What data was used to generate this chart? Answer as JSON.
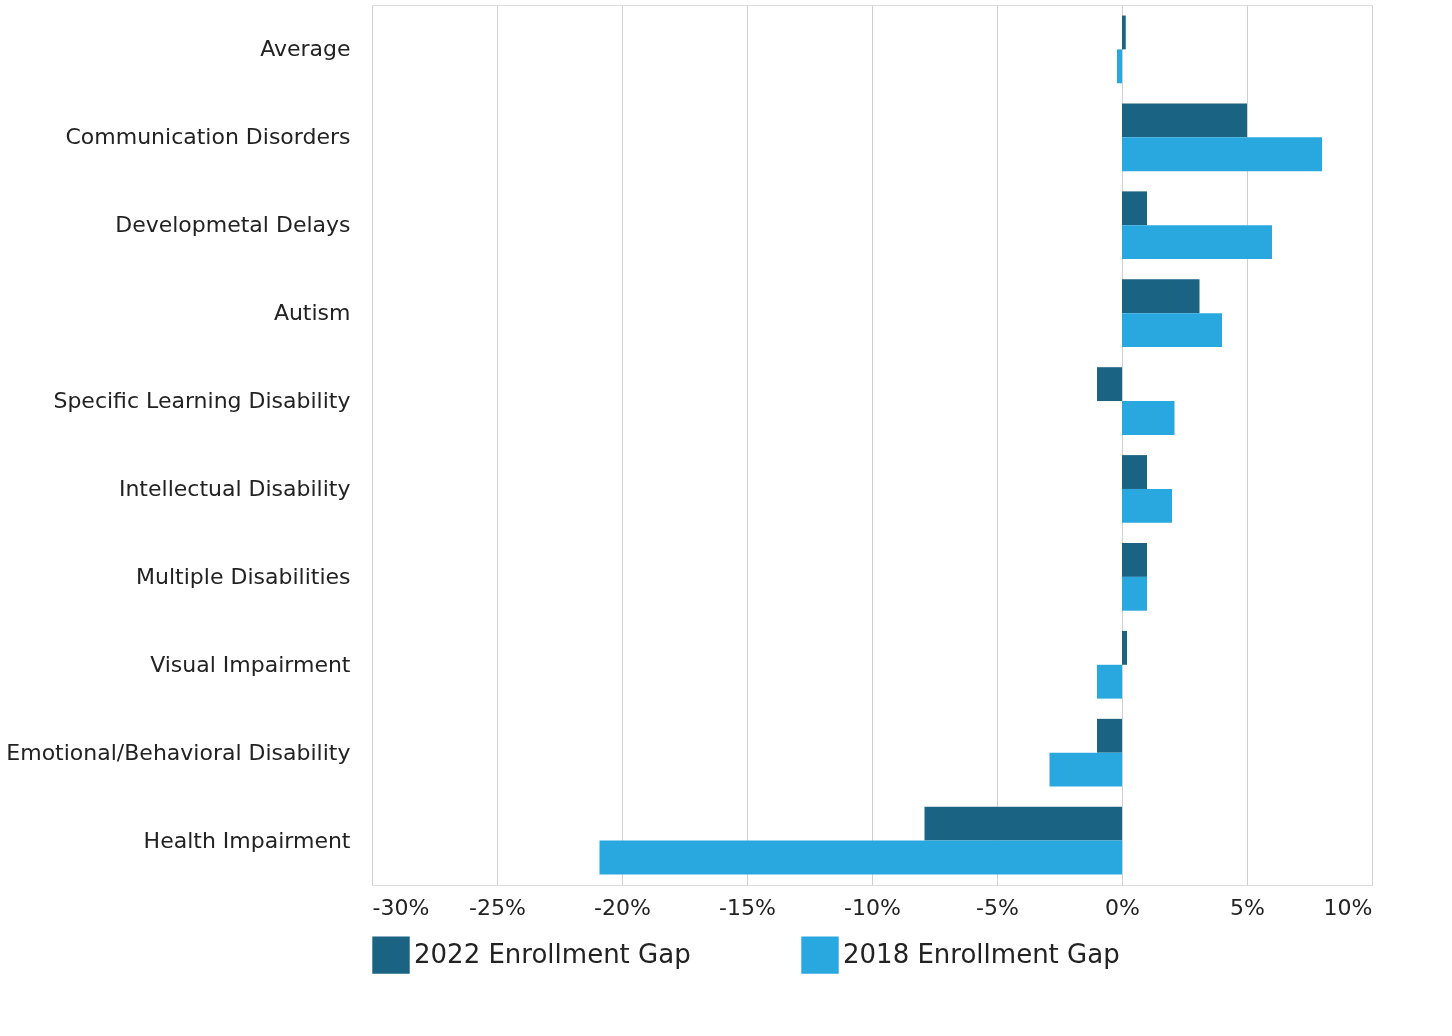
{
  "chart_data": {
    "type": "bar",
    "orientation": "horizontal",
    "categories": [
      "Average",
      "Communication Disorders",
      "Developmetal Delays",
      "Autism",
      "Specific Learning Disability",
      "Intellectual Disability",
      "Multiple Disabilities",
      "Visual Impairment",
      "Emotional/Behavioral Disability",
      "Health Impairment"
    ],
    "series": [
      {
        "name": "2022 Enrollment Gap",
        "color": "#1a6382",
        "values": [
          0.15,
          5.0,
          1.0,
          3.1,
          -1.0,
          1.0,
          1.0,
          0.2,
          -1.0,
          -7.9
        ]
      },
      {
        "name": "2018 Enrollment Gap",
        "color": "#29a8e0",
        "values": [
          -0.2,
          8.0,
          6.0,
          4.0,
          2.1,
          2.0,
          1.0,
          -1.0,
          -2.9,
          -20.9
        ]
      }
    ],
    "xlim": [
      -30,
      10
    ],
    "xticks": [
      {
        "value": -30,
        "label": "-30%"
      },
      {
        "value": -25,
        "label": "-25%"
      },
      {
        "value": -20,
        "label": "-20%"
      },
      {
        "value": -15,
        "label": "-15%"
      },
      {
        "value": -10,
        "label": "-10%"
      },
      {
        "value": -5,
        "label": "-5%"
      },
      {
        "value": 0,
        "label": "0%"
      },
      {
        "value": 5,
        "label": "5%"
      },
      {
        "value": 10,
        "label": "10%"
      }
    ],
    "grid": "x",
    "legend": "bottom"
  }
}
